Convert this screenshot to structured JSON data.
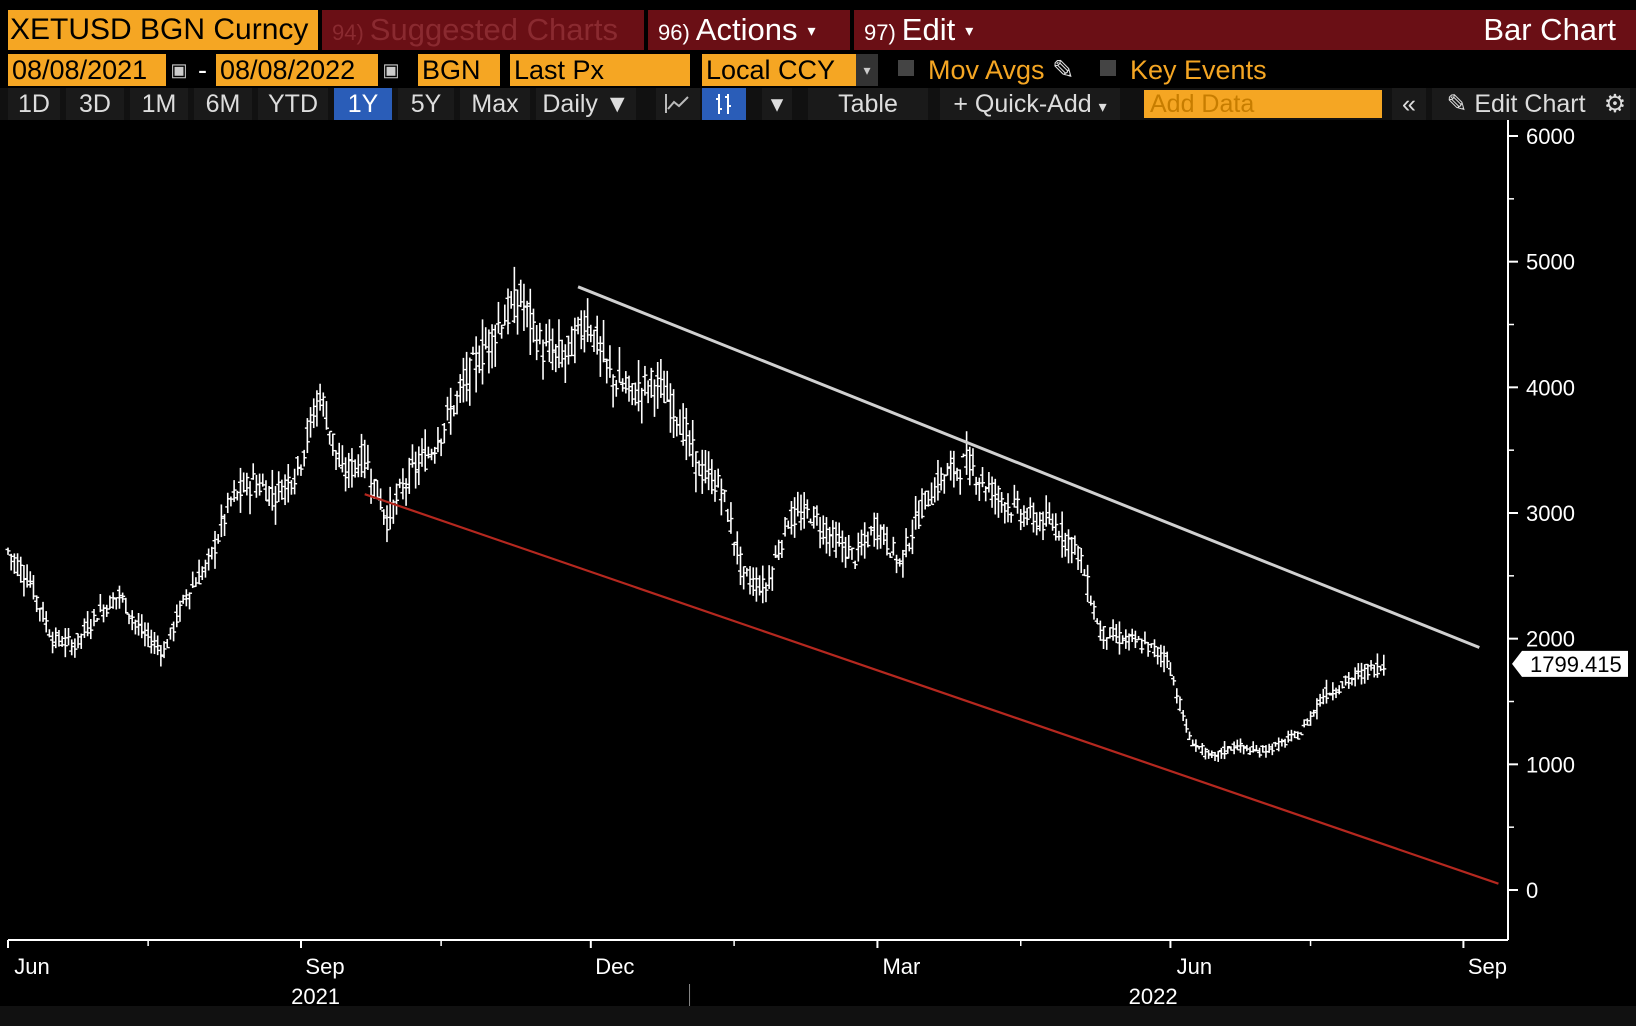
{
  "header": {
    "ticker": "XETUSD BGN Curncy",
    "suggested_num": "94)",
    "suggested": "Suggested Charts",
    "actions_num": "96)",
    "actions": "Actions",
    "edit_num": "97)",
    "edit": "Edit",
    "title": "Bar Chart"
  },
  "controls": {
    "start_date": "08/08/2021",
    "end_date": "08/08/2022",
    "dash": "-",
    "source": "BGN",
    "field": "Last Px",
    "currency": "Local CCY",
    "mov_avgs": "Mov Avgs",
    "key_events": "Key Events"
  },
  "toolbar": {
    "periods": [
      "1D",
      "3D",
      "1M",
      "6M",
      "YTD",
      "1Y",
      "5Y",
      "Max"
    ],
    "active_period": "1Y",
    "frequency": "Daily",
    "table": "Table",
    "quick_add": "Quick-Add",
    "add_data_placeholder": "Add Data",
    "edit_chart": "Edit Chart"
  },
  "colors": {
    "accent_orange": "#f5a623",
    "header_red": "#6a0f15",
    "active_blue": "#2a5db8",
    "price_bars": "#ffffff",
    "upper_trendline": "#d0d0d0",
    "lower_trendline": "#b5281f"
  },
  "chart_data": {
    "type": "bar",
    "subtype": "ohlc",
    "ylim": [
      0,
      6000
    ],
    "y_ticks": [
      0,
      1000,
      2000,
      3000,
      4000,
      5000,
      6000
    ],
    "x_range": [
      "2021-06-01",
      "2022-09-15"
    ],
    "x_month_labels": [
      "Jun",
      "Sep",
      "Dec",
      "Mar",
      "Jun",
      "Sep"
    ],
    "x_year_labels": [
      "2021",
      "2022"
    ],
    "last_price": "1799.415",
    "series": [
      {
        "dates": [
          "2021-06-01",
          "2021-06-08",
          "2021-06-15",
          "2021-06-22",
          "2021-06-29",
          "2021-07-06",
          "2021-07-13",
          "2021-07-20",
          "2021-07-27",
          "2021-08-03",
          "2021-08-10",
          "2021-08-17",
          "2021-08-24",
          "2021-08-31",
          "2021-09-07",
          "2021-09-14",
          "2021-09-21",
          "2021-09-28",
          "2021-10-05",
          "2021-10-12",
          "2021-10-19",
          "2021-10-26",
          "2021-11-02",
          "2021-11-09",
          "2021-11-16",
          "2021-11-23",
          "2021-11-30",
          "2021-12-07",
          "2021-12-14",
          "2021-12-21",
          "2021-12-28",
          "2022-01-04",
          "2022-01-11",
          "2022-01-18",
          "2022-01-25",
          "2022-02-01",
          "2022-02-08",
          "2022-02-15",
          "2022-02-22",
          "2022-03-01",
          "2022-03-08",
          "2022-03-15",
          "2022-03-22",
          "2022-03-29",
          "2022-04-05",
          "2022-04-12",
          "2022-04-19",
          "2022-04-26",
          "2022-05-03",
          "2022-05-10",
          "2022-05-17",
          "2022-05-24",
          "2022-05-31",
          "2022-06-07",
          "2022-06-14",
          "2022-06-21",
          "2022-06-28",
          "2022-07-05",
          "2022-07-12",
          "2022-07-19",
          "2022-07-26",
          "2022-08-02",
          "2022-08-08"
        ],
        "close": [
          2700,
          2450,
          2000,
          1950,
          2200,
          2350,
          2050,
          1900,
          2350,
          2600,
          3100,
          3250,
          3150,
          3350,
          3950,
          3300,
          3450,
          2950,
          3300,
          3500,
          3850,
          4200,
          4500,
          4700,
          4300,
          4250,
          4550,
          4100,
          3950,
          4050,
          3800,
          3350,
          3200,
          2500,
          2400,
          2950,
          3000,
          2800,
          2650,
          2900,
          2600,
          3050,
          3300,
          3400,
          3200,
          3050,
          2950,
          2900,
          2700,
          2050,
          2000,
          1950,
          1850,
          1200,
          1050,
          1150,
          1100,
          1150,
          1250,
          1550,
          1650,
          1750,
          1799
        ]
      }
    ]
  }
}
